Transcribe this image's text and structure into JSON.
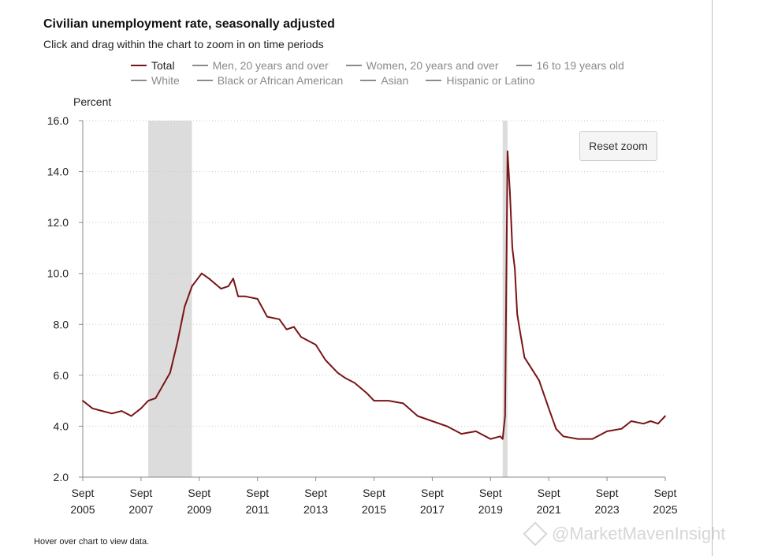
{
  "title": "Civilian unemployment rate, seasonally adjusted",
  "subtitle": "Click and drag within the chart to zoom in on time periods",
  "legend": [
    {
      "label": "Total",
      "color": "#7a1416",
      "active": true
    },
    {
      "label": "Men, 20 years and over",
      "color": "#8c8c8c",
      "active": false
    },
    {
      "label": "Women, 20 years and over",
      "color": "#8c8c8c",
      "active": false
    },
    {
      "label": "16 to 19 years old",
      "color": "#8c8c8c",
      "active": false
    },
    {
      "label": "White",
      "color": "#8c8c8c",
      "active": false
    },
    {
      "label": "Black or African American",
      "color": "#8c8c8c",
      "active": false
    },
    {
      "label": "Asian",
      "color": "#8c8c8c",
      "active": false
    },
    {
      "label": "Hispanic or Latino",
      "color": "#8c8c8c",
      "active": false
    }
  ],
  "reset_zoom_label": "Reset zoom",
  "hover_note": "Hover over chart to view data.",
  "watermark": "@MarketMavenInsight",
  "chart_data": {
    "type": "line",
    "ylabel": "Percent",
    "xlabel": "",
    "ylim": [
      2.0,
      16.0
    ],
    "yticks": [
      "16.0",
      "14.0",
      "12.0",
      "10.0",
      "8.0",
      "6.0",
      "4.0",
      "2.0"
    ],
    "xticks": [
      {
        "month": "Sept",
        "year": "2005"
      },
      {
        "month": "Sept",
        "year": "2007"
      },
      {
        "month": "Sept",
        "year": "2009"
      },
      {
        "month": "Sept",
        "year": "2011"
      },
      {
        "month": "Sept",
        "year": "2013"
      },
      {
        "month": "Sept",
        "year": "2015"
      },
      {
        "month": "Sept",
        "year": "2017"
      },
      {
        "month": "Sept",
        "year": "2019"
      },
      {
        "month": "Sept",
        "year": "2021"
      },
      {
        "month": "Sept",
        "year": "2023"
      },
      {
        "month": "Sept",
        "year": "2025"
      }
    ],
    "xlim": [
      "2005-09",
      "2025-09"
    ],
    "grid": "horizontal dotted",
    "recessions": [
      {
        "start": "2007-12",
        "end": "2009-06"
      },
      {
        "start": "2020-02",
        "end": "2020-04"
      }
    ],
    "series": [
      {
        "name": "Total",
        "color": "#7a1416",
        "points": [
          [
            "2005-09",
            5.0
          ],
          [
            "2006-01",
            4.7
          ],
          [
            "2006-05",
            4.6
          ],
          [
            "2006-09",
            4.5
          ],
          [
            "2007-01",
            4.6
          ],
          [
            "2007-05",
            4.4
          ],
          [
            "2007-09",
            4.7
          ],
          [
            "2007-12",
            5.0
          ],
          [
            "2008-03",
            5.1
          ],
          [
            "2008-06",
            5.6
          ],
          [
            "2008-09",
            6.1
          ],
          [
            "2008-12",
            7.3
          ],
          [
            "2009-03",
            8.7
          ],
          [
            "2009-06",
            9.5
          ],
          [
            "2009-10",
            10.0
          ],
          [
            "2010-01",
            9.8
          ],
          [
            "2010-06",
            9.4
          ],
          [
            "2010-09",
            9.5
          ],
          [
            "2010-11",
            9.8
          ],
          [
            "2011-01",
            9.1
          ],
          [
            "2011-04",
            9.1
          ],
          [
            "2011-09",
            9.0
          ],
          [
            "2012-01",
            8.3
          ],
          [
            "2012-06",
            8.2
          ],
          [
            "2012-09",
            7.8
          ],
          [
            "2012-12",
            7.9
          ],
          [
            "2013-03",
            7.5
          ],
          [
            "2013-09",
            7.2
          ],
          [
            "2014-01",
            6.6
          ],
          [
            "2014-06",
            6.1
          ],
          [
            "2014-09",
            5.9
          ],
          [
            "2015-01",
            5.7
          ],
          [
            "2015-06",
            5.3
          ],
          [
            "2015-09",
            5.0
          ],
          [
            "2016-03",
            5.0
          ],
          [
            "2016-09",
            4.9
          ],
          [
            "2017-03",
            4.4
          ],
          [
            "2017-09",
            4.2
          ],
          [
            "2018-03",
            4.0
          ],
          [
            "2018-09",
            3.7
          ],
          [
            "2019-03",
            3.8
          ],
          [
            "2019-09",
            3.5
          ],
          [
            "2020-01",
            3.6
          ],
          [
            "2020-02",
            3.5
          ],
          [
            "2020-03",
            4.4
          ],
          [
            "2020-04",
            14.8
          ],
          [
            "2020-05",
            13.2
          ],
          [
            "2020-06",
            11.0
          ],
          [
            "2020-07",
            10.2
          ],
          [
            "2020-08",
            8.4
          ],
          [
            "2020-09",
            7.8
          ],
          [
            "2020-11",
            6.7
          ],
          [
            "2021-01",
            6.4
          ],
          [
            "2021-05",
            5.8
          ],
          [
            "2021-09",
            4.7
          ],
          [
            "2021-12",
            3.9
          ],
          [
            "2022-03",
            3.6
          ],
          [
            "2022-09",
            3.5
          ],
          [
            "2023-03",
            3.5
          ],
          [
            "2023-09",
            3.8
          ],
          [
            "2024-03",
            3.9
          ],
          [
            "2024-07",
            4.2
          ],
          [
            "2024-12",
            4.1
          ],
          [
            "2025-03",
            4.2
          ],
          [
            "2025-06",
            4.1
          ],
          [
            "2025-09",
            4.4
          ]
        ]
      }
    ]
  }
}
